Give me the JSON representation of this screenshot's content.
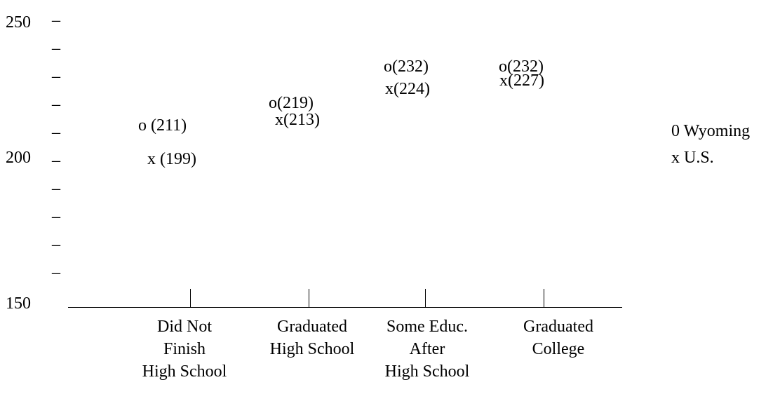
{
  "chart_data": {
    "type": "scatter",
    "title": "",
    "xlabel": "",
    "ylabel": "",
    "ylim": [
      150,
      250
    ],
    "y_tick_labels": [
      "250",
      "200",
      "150"
    ],
    "tick_mark": "_",
    "categories": [
      "Did Not\nFinish\nHigh School",
      "Graduated\nHigh School",
      "Some Educ.\nAfter\nHigh School",
      "Graduated\nCollege"
    ],
    "series": [
      {
        "name": "Wyoming",
        "marker": "o",
        "values": [
          211,
          219,
          232,
          232
        ],
        "labels": [
          "o (211)",
          "o(219)",
          "o(232)",
          "o(232)"
        ]
      },
      {
        "name": "U.S.",
        "marker": "x",
        "values": [
          199,
          213,
          224,
          227
        ],
        "labels": [
          "x (199)",
          "x(213)",
          "x(224)",
          "x(227)"
        ]
      }
    ],
    "legend": [
      "0 Wyoming",
      "x U.S."
    ],
    "legend_position": "right"
  }
}
